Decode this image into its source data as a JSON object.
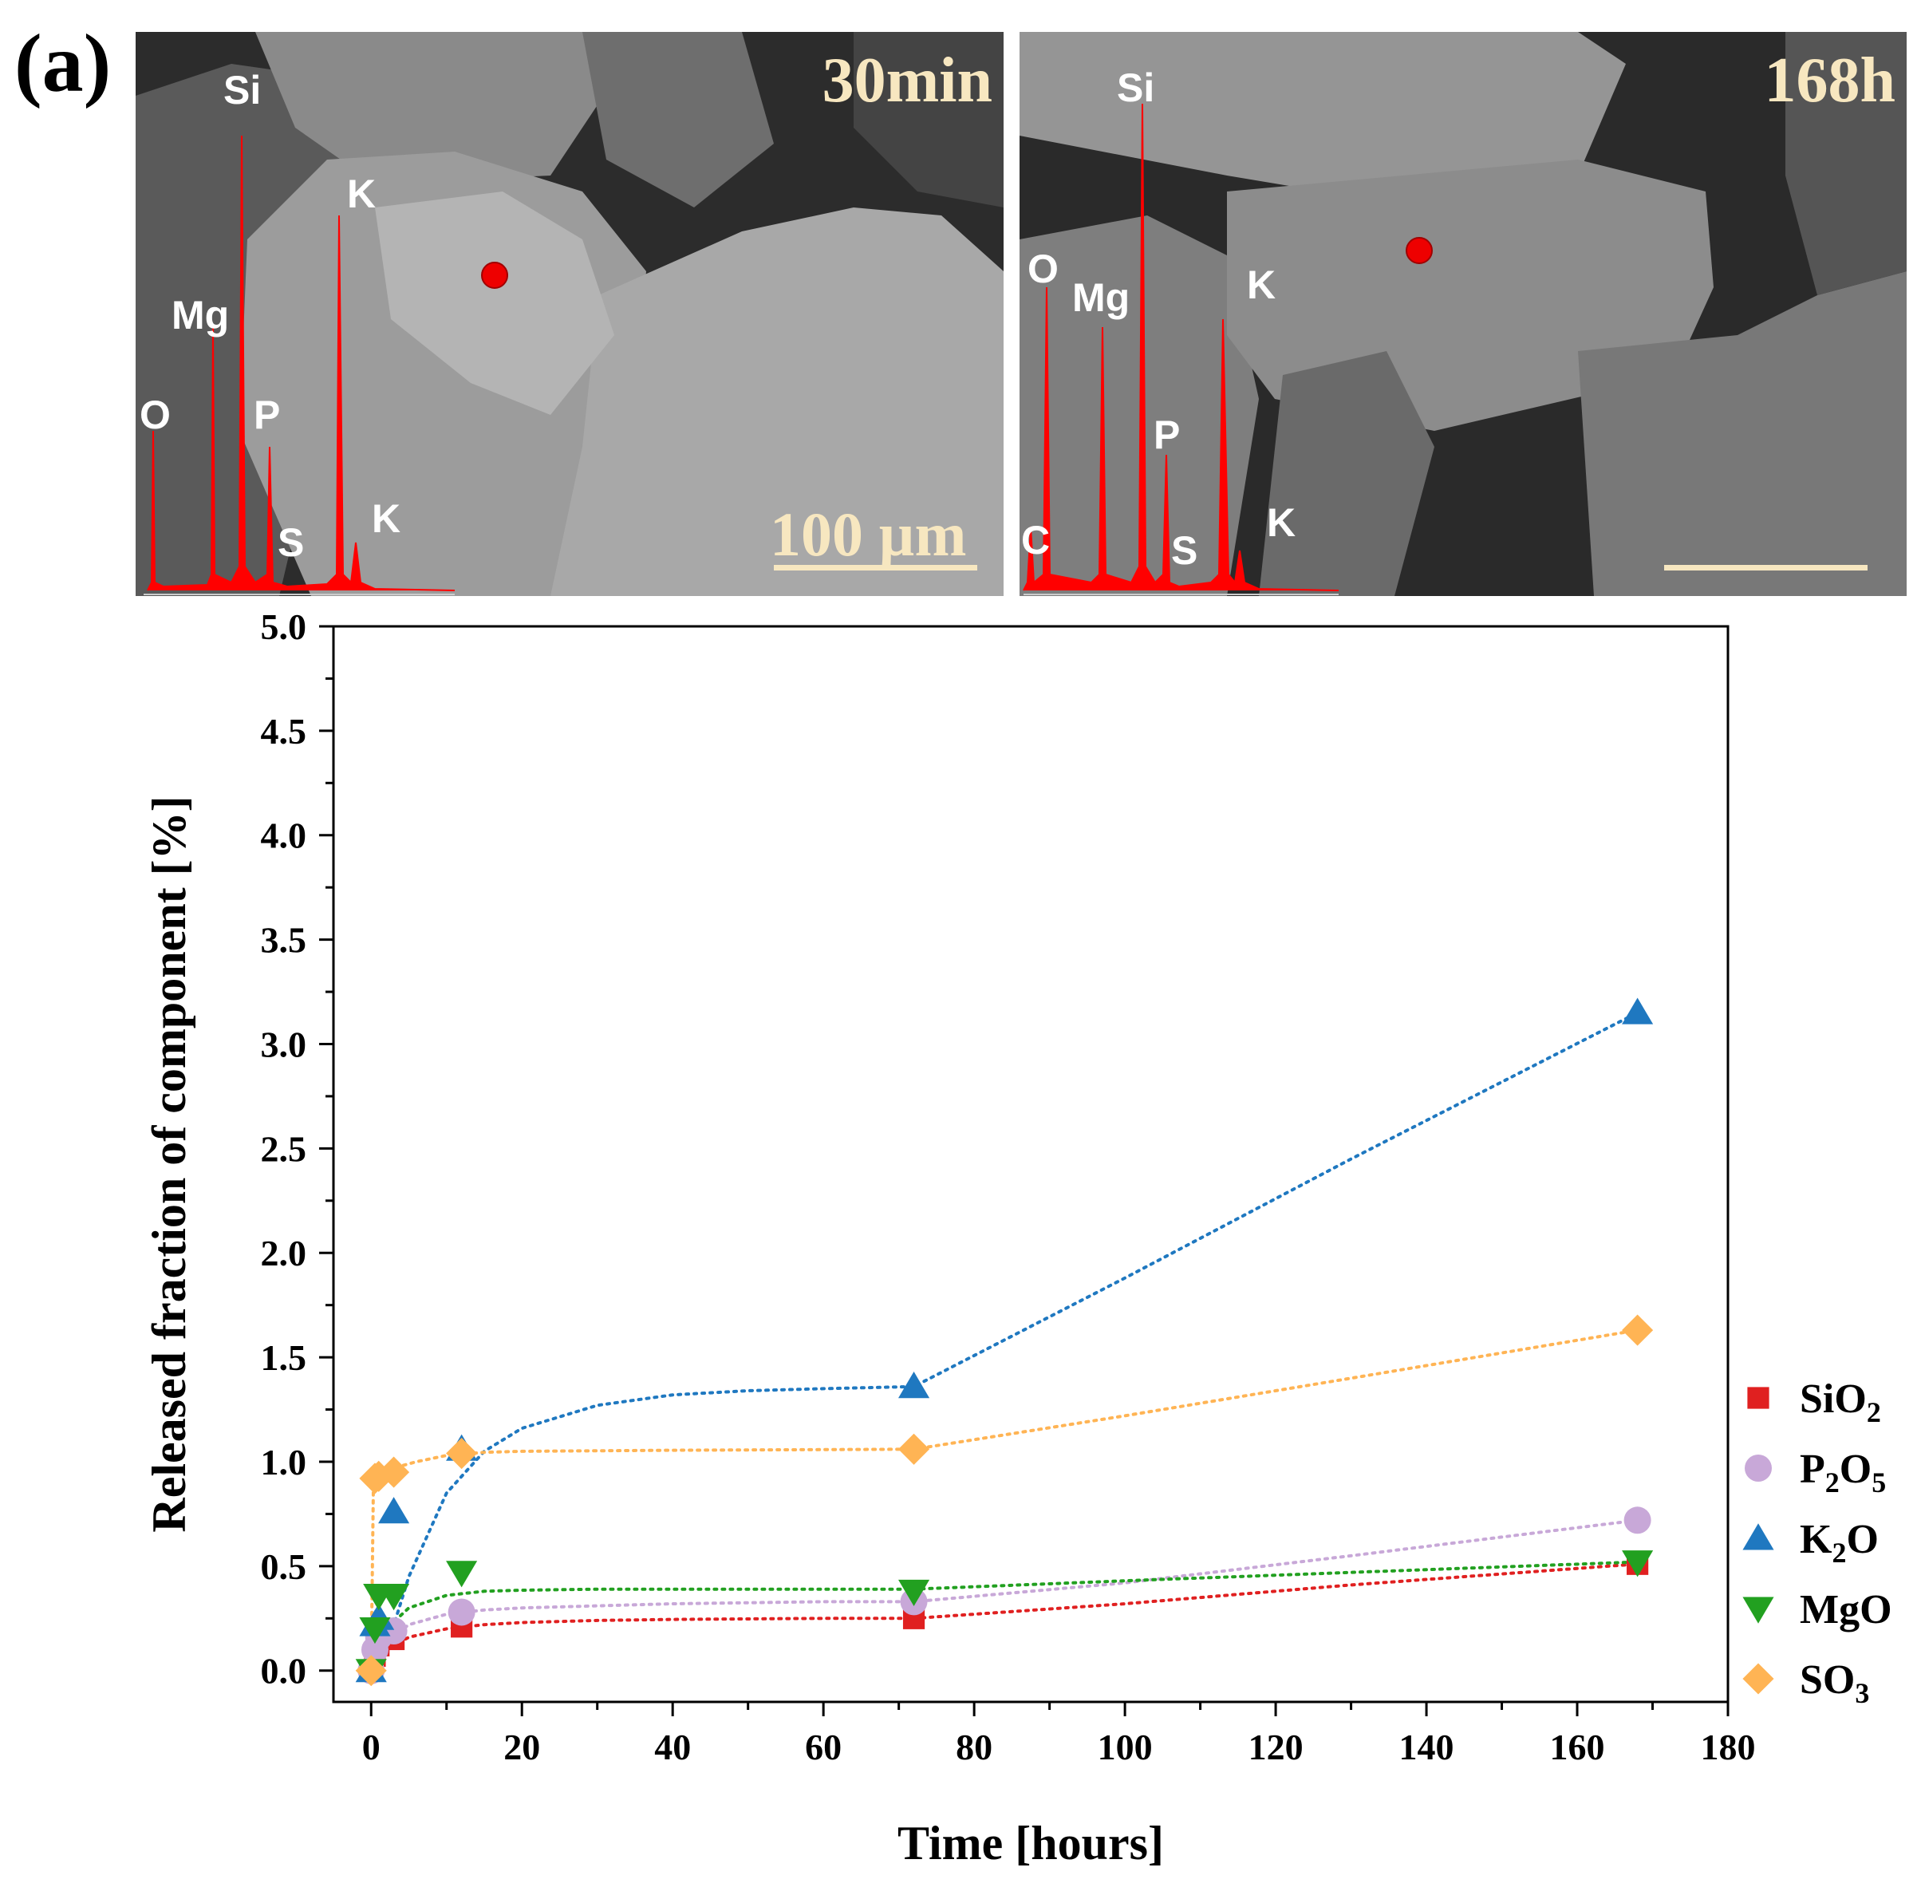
{
  "panel_label": "(a)",
  "sem_images": [
    {
      "time_label": "30min",
      "scale_bar_label": "100 µm",
      "eds_peaks": [
        "O",
        "Mg",
        "Si",
        "P",
        "S",
        "K",
        "K"
      ]
    },
    {
      "time_label": "168h",
      "scale_bar_label": "",
      "eds_peaks": [
        "C",
        "O",
        "Mg",
        "Si",
        "P",
        "S",
        "K",
        "K"
      ]
    }
  ],
  "colors": {
    "SiO2": "#e02020",
    "P2O5": "#c8a8d8",
    "K2O": "#1f78c0",
    "MgO": "#22a020",
    "SO3": "#ffb454",
    "eds": "#ff0000",
    "scale": "#f7e7c0"
  },
  "chart_data": {
    "type": "scatter",
    "title": "",
    "xlabel": "Time [hours]",
    "ylabel": "Released fraction of component [%]",
    "xlim": [
      -5,
      180
    ],
    "ylim": [
      -0.15,
      5.0
    ],
    "x_ticks": [
      0,
      20,
      40,
      60,
      80,
      100,
      120,
      140,
      160,
      180
    ],
    "y_ticks": [
      0.0,
      0.5,
      1.0,
      1.5,
      2.0,
      2.5,
      3.0,
      3.5,
      4.0,
      4.5,
      5.0
    ],
    "x_tick_labels": [
      "0",
      "20",
      "40",
      "60",
      "80",
      "100",
      "120",
      "140",
      "160",
      "180"
    ],
    "y_tick_labels": [
      "0.0",
      "0.5",
      "1.0",
      "1.5",
      "2.0",
      "2.5",
      "3.0",
      "3.5",
      "4.0",
      "4.5",
      "5.0"
    ],
    "legend_position": "right",
    "series": [
      {
        "key": "SiO2",
        "name": "SiO2",
        "label_main": "SiO",
        "label_sub": "2",
        "marker": "square",
        "x": [
          0,
          0.5,
          1,
          3,
          12,
          72,
          168
        ],
        "y": [
          0.0,
          0.07,
          0.12,
          0.15,
          0.21,
          0.25,
          0.51
        ]
      },
      {
        "key": "P2O5",
        "name": "P2O5",
        "label_main": "P",
        "label_sub": "2",
        "label_main2": "O",
        "label_sub2": "5",
        "marker": "circle",
        "x": [
          0,
          0.5,
          1,
          3,
          12,
          72,
          168
        ],
        "y": [
          0.0,
          0.1,
          0.16,
          0.19,
          0.28,
          0.33,
          0.72
        ]
      },
      {
        "key": "K2O",
        "name": "K2O",
        "label_main": "K",
        "label_sub": "2",
        "label_main2": "O",
        "marker": "triangle-up",
        "x": [
          0,
          0.5,
          1,
          3,
          12,
          72,
          168
        ],
        "y": [
          0.0,
          0.22,
          0.25,
          0.76,
          1.06,
          1.36,
          3.15
        ]
      },
      {
        "key": "MgO",
        "name": "MgO",
        "label_main": "MgO",
        "marker": "triangle-down",
        "x": [
          0,
          0.5,
          1,
          3,
          12,
          72,
          168
        ],
        "y": [
          0.0,
          0.2,
          0.36,
          0.36,
          0.47,
          0.38,
          0.52
        ]
      },
      {
        "key": "SO3",
        "name": "SO3",
        "label_main": "SO",
        "label_sub": "3",
        "marker": "diamond",
        "x": [
          0,
          0.5,
          1,
          3,
          12,
          72,
          168
        ],
        "y": [
          0.0,
          0.92,
          0.93,
          0.95,
          1.04,
          1.06,
          1.63
        ]
      }
    ],
    "fit_curves": [
      {
        "key": "SiO2",
        "x": [
          0,
          2,
          5,
          10,
          15,
          20,
          30,
          40,
          60,
          72,
          100,
          130,
          168
        ],
        "y": [
          0.0,
          0.1,
          0.16,
          0.2,
          0.22,
          0.23,
          0.24,
          0.245,
          0.25,
          0.25,
          0.32,
          0.41,
          0.51
        ]
      },
      {
        "key": "P2O5",
        "x": [
          0,
          2,
          5,
          10,
          15,
          20,
          30,
          40,
          60,
          72,
          100,
          130,
          168
        ],
        "y": [
          0.0,
          0.14,
          0.22,
          0.27,
          0.29,
          0.3,
          0.31,
          0.32,
          0.33,
          0.33,
          0.42,
          0.55,
          0.72
        ]
      },
      {
        "key": "K2O",
        "x": [
          0,
          2,
          5,
          10,
          15,
          20,
          30,
          40,
          50,
          60,
          72,
          100,
          130,
          168
        ],
        "y": [
          0.0,
          0.1,
          0.45,
          0.85,
          1.05,
          1.16,
          1.27,
          1.32,
          1.34,
          1.35,
          1.36,
          1.88,
          2.45,
          3.15
        ]
      },
      {
        "key": "MgO",
        "x": [
          0,
          2,
          5,
          10,
          15,
          20,
          30,
          40,
          60,
          72,
          100,
          130,
          168
        ],
        "y": [
          0.0,
          0.2,
          0.3,
          0.36,
          0.38,
          0.385,
          0.39,
          0.39,
          0.39,
          0.39,
          0.43,
          0.47,
          0.52
        ]
      },
      {
        "key": "SO3",
        "x": [
          0,
          0.3,
          1,
          3,
          6,
          10,
          15,
          20,
          40,
          72,
          100,
          130,
          168
        ],
        "y": [
          0.0,
          0.9,
          0.93,
          0.97,
          1.0,
          1.03,
          1.045,
          1.05,
          1.055,
          1.06,
          1.22,
          1.4,
          1.63
        ]
      }
    ]
  }
}
